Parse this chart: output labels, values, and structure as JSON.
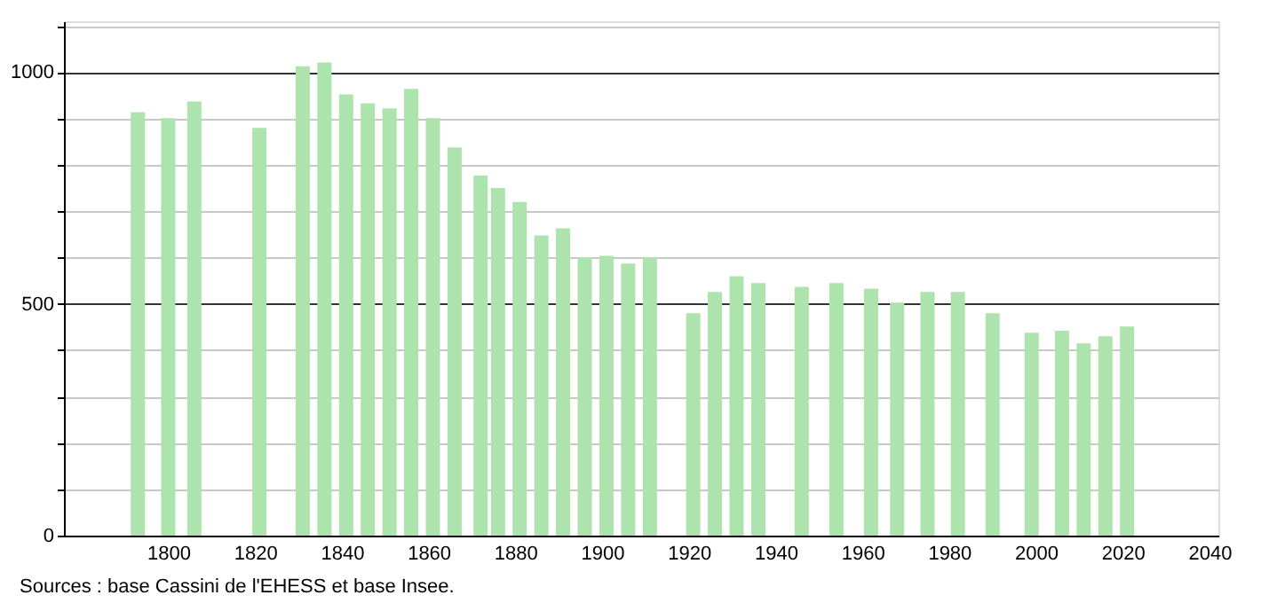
{
  "chart_data": {
    "type": "bar",
    "x": [
      1793,
      1800,
      1806,
      1821,
      1831,
      1836,
      1841,
      1846,
      1851,
      1856,
      1861,
      1866,
      1872,
      1876,
      1881,
      1886,
      1891,
      1896,
      1901,
      1906,
      1911,
      1921,
      1926,
      1931,
      1936,
      1946,
      1954,
      1962,
      1968,
      1975,
      1982,
      1990,
      1999,
      2006,
      2011,
      2016,
      2021
    ],
    "series": [
      {
        "color": "#ade3ad",
        "values": [
          914,
          901,
          937,
          880,
          1013,
          1021,
          952,
          933,
          922,
          964,
          901,
          838,
          777,
          750,
          720,
          648,
          663,
          601,
          604,
          587,
          601,
          480,
          526,
          560,
          545,
          537,
          545,
          533,
          503,
          526,
          526,
          480,
          438,
          442,
          415,
          430,
          451
        ]
      }
    ],
    "xlim": [
      1778,
      2040
    ],
    "xticks": [
      1800,
      1820,
      1840,
      1860,
      1880,
      1900,
      1920,
      1940,
      1960,
      1980,
      2000,
      2020,
      2040
    ],
    "ylim": [
      0,
      1110
    ],
    "yticks": [
      0,
      {
        "value": 100,
        "label": null
      },
      {
        "value": 200,
        "label": null
      },
      {
        "value": 300,
        "label": null
      },
      {
        "value": 400,
        "label": null
      },
      500,
      {
        "value": 600,
        "label": null
      },
      {
        "value": 700,
        "label": null
      },
      {
        "value": 800,
        "label": null
      },
      {
        "value": 900,
        "label": null
      },
      1000,
      {
        "value": 1100,
        "label": null
      }
    ],
    "grid": "y",
    "annotations": [
      "Sources : base Cassini de l'EHESS et base Insee."
    ]
  }
}
